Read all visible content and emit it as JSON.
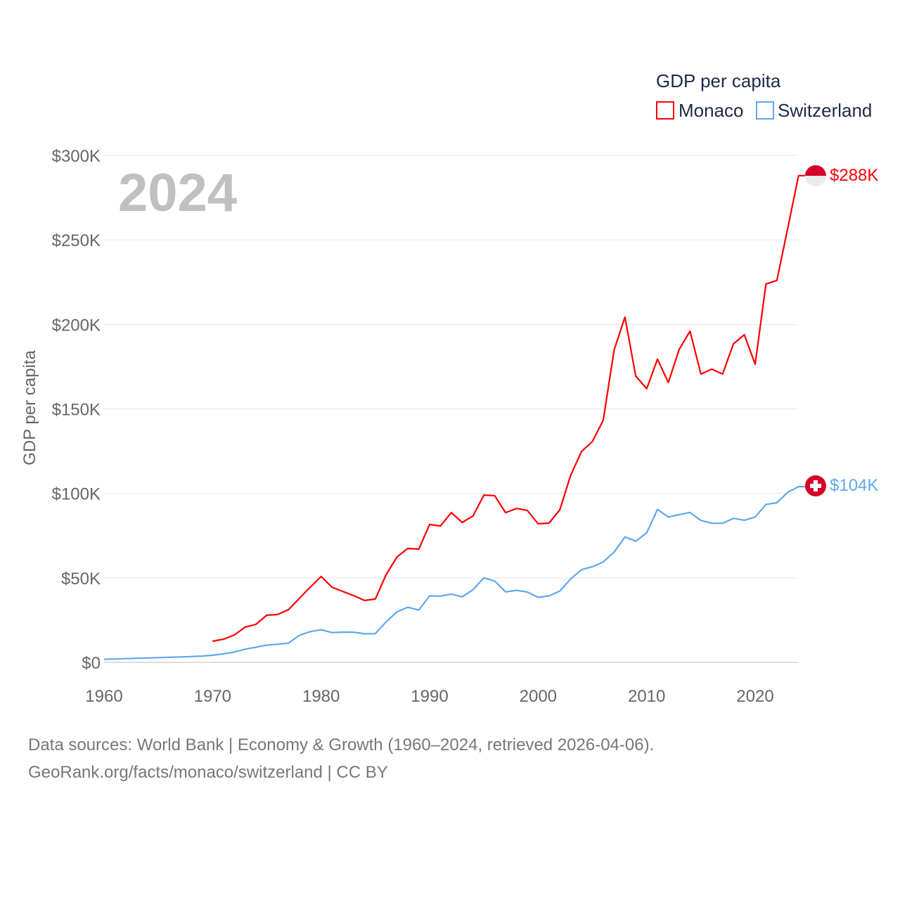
{
  "chart_data": {
    "type": "line",
    "title": "",
    "year_label": "2024",
    "xlabel": "",
    "ylabel": "GDP per capita",
    "legend_title": "GDP per capita",
    "legend_position": "top-right",
    "xlim": [
      1960,
      2024
    ],
    "ylim": [
      0,
      300
    ],
    "grid": true,
    "x_ticks": [
      1960,
      1970,
      1980,
      1990,
      2000,
      2010,
      2020
    ],
    "x_tick_labels": [
      "1960",
      "1970",
      "1980",
      "1990",
      "2000",
      "2010",
      "2020"
    ],
    "y_ticks": [
      0,
      50,
      100,
      150,
      200,
      250,
      300
    ],
    "y_tick_labels": [
      "$0",
      "$50K",
      "$100K",
      "$150K",
      "$200K",
      "$250K",
      "$300K"
    ],
    "units": "thousand USD",
    "series": [
      {
        "name": "Monaco",
        "color": "#ff0000",
        "end_label": "$288K",
        "flag": "monaco-flag",
        "start_year": 1970,
        "values": [
          12.5,
          13.7,
          16.2,
          20.8,
          22.5,
          27.9,
          28.3,
          31.2,
          37.9,
          44.5,
          50.8,
          44.5,
          42.0,
          39.5,
          36.6,
          37.5,
          52.0,
          62.4,
          67.4,
          67.0,
          81.6,
          80.7,
          88.6,
          82.8,
          86.6,
          99.0,
          98.6,
          88.6,
          91.1,
          89.9,
          82.0,
          82.4,
          90.3,
          110.7,
          124.8,
          130.7,
          143.2,
          184.8,
          204.3,
          169.4,
          161.9,
          179.4,
          165.6,
          185.2,
          196.0,
          170.6,
          173.5,
          170.6,
          188.5,
          193.9,
          176.4,
          223.9,
          226.0,
          256.8,
          288.0
        ]
      },
      {
        "name": "Switzerland",
        "color": "#5ea8ee",
        "end_label": "$104K",
        "flag": "switzerland-flag",
        "start_year": 1960,
        "values": [
          1.8,
          2.0,
          2.2,
          2.4,
          2.6,
          2.8,
          3.0,
          3.2,
          3.4,
          3.7,
          4.2,
          5.0,
          6.1,
          7.8,
          9.0,
          10.2,
          10.7,
          11.4,
          16.0,
          18.2,
          19.3,
          17.6,
          17.9,
          17.8,
          16.9,
          17.0,
          24.0,
          29.9,
          32.6,
          31.0,
          39.3,
          39.2,
          40.4,
          38.8,
          43.0,
          50.0,
          48.1,
          41.7,
          42.6,
          41.6,
          38.5,
          39.3,
          42.2,
          49.4,
          54.9,
          56.6,
          59.4,
          65.2,
          74.2,
          71.7,
          76.6,
          90.5,
          86.0,
          87.4,
          88.7,
          84.0,
          82.3,
          82.3,
          85.2,
          84.1,
          86.0,
          93.5,
          94.4,
          100.6,
          104.0
        ]
      }
    ]
  },
  "footer": {
    "line1": "Data sources: World Bank | Economy & Growth (1960–2024, retrieved 2026-04-06).",
    "line2": "GeoRank.org/facts/monaco/switzerland | CC BY"
  }
}
